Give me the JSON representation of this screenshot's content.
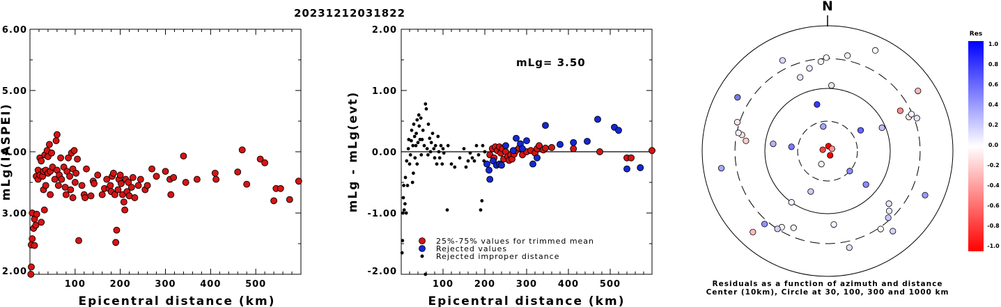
{
  "title": "20231212031822",
  "chart_data": [
    {
      "type": "scatter",
      "xlabel": "Epicentral distance (km)",
      "ylabel": "mLg(IASPEI)",
      "xlim": [
        0,
        600
      ],
      "ylim": [
        2.0,
        6.0
      ],
      "xticks": [
        "100",
        "200",
        "300",
        "400",
        "500"
      ],
      "yticks": [
        "2.00",
        "3.00",
        "4.00",
        "5.00",
        "6.00"
      ],
      "points": [
        [
          2,
          2.0
        ],
        [
          3,
          2.12
        ],
        [
          3,
          2.48
        ],
        [
          5,
          2.58
        ],
        [
          5,
          3.0
        ],
        [
          8,
          2.75
        ],
        [
          10,
          2.9
        ],
        [
          10,
          2.47
        ],
        [
          13,
          2.8
        ],
        [
          14,
          3.6
        ],
        [
          15,
          2.98
        ],
        [
          18,
          3.55
        ],
        [
          18,
          3.7
        ],
        [
          22,
          3.62
        ],
        [
          22,
          3.9
        ],
        [
          25,
          2.85
        ],
        [
          25,
          3.85
        ],
        [
          28,
          3.6
        ],
        [
          30,
          3.38
        ],
        [
          30,
          3.68
        ],
        [
          32,
          3.05
        ],
        [
          33,
          3.95
        ],
        [
          35,
          3.45
        ],
        [
          35,
          3.7
        ],
        [
          38,
          4.02
        ],
        [
          40,
          3.65
        ],
        [
          40,
          3.92
        ],
        [
          43,
          4.12
        ],
        [
          45,
          3.3
        ],
        [
          45,
          3.68
        ],
        [
          48,
          3.98
        ],
        [
          50,
          3.75
        ],
        [
          55,
          3.55
        ],
        [
          58,
          4.18
        ],
        [
          60,
          4.28
        ],
        [
          60,
          3.7
        ],
        [
          63,
          3.45
        ],
        [
          65,
          3.62
        ],
        [
          68,
          3.9
        ],
        [
          70,
          3.55
        ],
        [
          75,
          3.75
        ],
        [
          78,
          3.42
        ],
        [
          80,
          3.3
        ],
        [
          82,
          3.68
        ],
        [
          85,
          3.9
        ],
        [
          88,
          3.6
        ],
        [
          90,
          3.38
        ],
        [
          92,
          3.98
        ],
        [
          95,
          3.72
        ],
        [
          95,
          3.25
        ],
        [
          98,
          4.02
        ],
        [
          100,
          3.5
        ],
        [
          102,
          3.65
        ],
        [
          105,
          3.88
        ],
        [
          108,
          2.55
        ],
        [
          115,
          3.45
        ],
        [
          120,
          3.3
        ],
        [
          122,
          3.25
        ],
        [
          125,
          3.72
        ],
        [
          135,
          3.28
        ],
        [
          140,
          3.52
        ],
        [
          142,
          3.48
        ],
        [
          150,
          3.62
        ],
        [
          160,
          3.3
        ],
        [
          165,
          3.4
        ],
        [
          170,
          3.55
        ],
        [
          175,
          3.4
        ],
        [
          178,
          3.45
        ],
        [
          180,
          3.35
        ],
        [
          182,
          3.6
        ],
        [
          185,
          3.65
        ],
        [
          188,
          3.3
        ],
        [
          190,
          2.52
        ],
        [
          192,
          2.72
        ],
        [
          195,
          3.38
        ],
        [
          197,
          3.55
        ],
        [
          200,
          3.62
        ],
        [
          202,
          3.48
        ],
        [
          205,
          3.3
        ],
        [
          208,
          3.18
        ],
        [
          210,
          3.05
        ],
        [
          212,
          3.55
        ],
        [
          215,
          3.35
        ],
        [
          218,
          3.5
        ],
        [
          220,
          3.28
        ],
        [
          225,
          3.42
        ],
        [
          228,
          3.58
        ],
        [
          232,
          3.25
        ],
        [
          240,
          3.45
        ],
        [
          245,
          3.55
        ],
        [
          255,
          3.38
        ],
        [
          260,
          3.45
        ],
        [
          270,
          3.72
        ],
        [
          280,
          3.6
        ],
        [
          300,
          3.68
        ],
        [
          310,
          3.55
        ],
        [
          312,
          3.3
        ],
        [
          318,
          3.58
        ],
        [
          340,
          3.93
        ],
        [
          345,
          3.5
        ],
        [
          370,
          3.55
        ],
        [
          410,
          3.65
        ],
        [
          412,
          3.55
        ],
        [
          460,
          3.67
        ],
        [
          470,
          4.03
        ],
        [
          480,
          3.47
        ],
        [
          510,
          3.88
        ],
        [
          520,
          3.82
        ],
        [
          540,
          3.2
        ],
        [
          545,
          3.4
        ],
        [
          555,
          3.4
        ],
        [
          575,
          3.22
        ],
        [
          595,
          3.52
        ]
      ]
    },
    {
      "type": "scatter",
      "xlabel": "Epicentral distance (km)",
      "ylabel": "mLg - mLg(evt)",
      "annotation": "mLg= 3.50",
      "xlim": [
        0,
        600
      ],
      "ylim": [
        -2.0,
        2.0
      ],
      "xticks": [
        "100",
        "200",
        "300",
        "400",
        "500"
      ],
      "yticks": [
        "-2.00",
        "-1.00",
        "0.00",
        "1.00",
        "2.00"
      ],
      "reference_line_y": 0.0,
      "legend": [
        {
          "label": "25%-75% values for trimmed mean",
          "color": "#d41414"
        },
        {
          "label": "Rejected values",
          "color": "#1428d4"
        },
        {
          "label": "Rejected improper distance",
          "color": "#000000"
        }
      ],
      "series": [
        {
          "color": "#d41414",
          "points": [
            [
              212,
              -0.05
            ],
            [
              218,
              0.05
            ],
            [
              222,
              -0.1
            ],
            [
              225,
              0.08
            ],
            [
              230,
              0.02
            ],
            [
              235,
              0.08
            ],
            [
              238,
              -0.02
            ],
            [
              242,
              0.05
            ],
            [
              245,
              -0.12
            ],
            [
              250,
              0.0
            ],
            [
              255,
              -0.08
            ],
            [
              258,
              -0.14
            ],
            [
              262,
              -0.05
            ],
            [
              265,
              -0.12
            ],
            [
              270,
              -0.04
            ],
            [
              275,
              0.02
            ],
            [
              282,
              0.06
            ],
            [
              290,
              -0.05
            ],
            [
              300,
              0.0
            ],
            [
              310,
              0.02
            ],
            [
              320,
              -0.02
            ],
            [
              325,
              0.05
            ],
            [
              330,
              0.1
            ],
            [
              340,
              0.03
            ],
            [
              345,
              0.06
            ],
            [
              360,
              0.07
            ],
            [
              412,
              0.05
            ],
            [
              475,
              0.0
            ],
            [
              540,
              -0.1
            ],
            [
              550,
              -0.1
            ],
            [
              600,
              0.02
            ]
          ]
        },
        {
          "color": "#1428d4",
          "points": [
            [
              205,
              -0.2
            ],
            [
              210,
              -0.3
            ],
            [
              212,
              -0.45
            ],
            [
              220,
              -0.15
            ],
            [
              228,
              -0.22
            ],
            [
              235,
              -0.2
            ],
            [
              240,
              -0.22
            ],
            [
              250,
              0.1
            ],
            [
              268,
              0.02
            ],
            [
              275,
              0.22
            ],
            [
              285,
              0.13
            ],
            [
              290,
              0.05
            ],
            [
              300,
              0.18
            ],
            [
              315,
              -0.2
            ],
            [
              325,
              -0.1
            ],
            [
              345,
              0.43
            ],
            [
              380,
              0.12
            ],
            [
              412,
              0.15
            ],
            [
              445,
              0.17
            ],
            [
              470,
              0.53
            ],
            [
              510,
              0.4
            ],
            [
              520,
              0.35
            ],
            [
              540,
              -0.28
            ],
            [
              572,
              -0.26
            ]
          ]
        },
        {
          "color": "#000000",
          "points": [
            [
              2,
              -1.65
            ],
            [
              3,
              -1.45
            ],
            [
              4,
              -1.0
            ],
            [
              5,
              -0.75
            ],
            [
              6,
              -0.55
            ],
            [
              7,
              -0.95
            ],
            [
              9,
              -0.85
            ],
            [
              10,
              -0.42
            ],
            [
              12,
              -1.0
            ],
            [
              13,
              -0.15
            ],
            [
              15,
              -0.55
            ],
            [
              17,
              0.05
            ],
            [
              18,
              0.2
            ],
            [
              20,
              -0.2
            ],
            [
              22,
              -0.05
            ],
            [
              24,
              0.18
            ],
            [
              25,
              0.35
            ],
            [
              27,
              -0.5
            ],
            [
              28,
              0.1
            ],
            [
              29,
              -0.35
            ],
            [
              30,
              0.45
            ],
            [
              32,
              0.25
            ],
            [
              33,
              -0.1
            ],
            [
              35,
              0.1
            ],
            [
              36,
              0.3
            ],
            [
              38,
              0.52
            ],
            [
              38,
              -0.2
            ],
            [
              40,
              0.15
            ],
            [
              42,
              0.6
            ],
            [
              43,
              0.42
            ],
            [
              45,
              0.2
            ],
            [
              47,
              0.55
            ],
            [
              48,
              -0.05
            ],
            [
              50,
              0.2
            ],
            [
              52,
              0.35
            ],
            [
              55,
              0.1
            ],
            [
              58,
              0.78
            ],
            [
              58,
              -2.0
            ],
            [
              60,
              0.7
            ],
            [
              62,
              0.05
            ],
            [
              64,
              -0.05
            ],
            [
              65,
              0.45
            ],
            [
              68,
              0.22
            ],
            [
              70,
              0.0
            ],
            [
              72,
              0.15
            ],
            [
              75,
              0.3
            ],
            [
              78,
              0.05
            ],
            [
              80,
              -0.1
            ],
            [
              82,
              0.1
            ],
            [
              85,
              -0.2
            ],
            [
              88,
              0.25
            ],
            [
              90,
              0.0
            ],
            [
              92,
              -0.1
            ],
            [
              95,
              0.1
            ],
            [
              98,
              -0.2
            ],
            [
              100,
              0.05
            ],
            [
              102,
              -0.02
            ],
            [
              110,
              -0.95
            ],
            [
              112,
              0.1
            ],
            [
              120,
              -0.2
            ],
            [
              128,
              -0.25
            ],
            [
              140,
              -0.1
            ],
            [
              150,
              0.05
            ],
            [
              155,
              -0.25
            ],
            [
              160,
              -0.15
            ],
            [
              165,
              -0.02
            ],
            [
              170,
              -0.1
            ],
            [
              175,
              -0.15
            ],
            [
              180,
              0.1
            ],
            [
              185,
              -0.05
            ],
            [
              190,
              -0.95
            ],
            [
              193,
              -0.8
            ],
            [
              195,
              0.1
            ],
            [
              198,
              -0.15
            ],
            [
              200,
              0.0
            ]
          ]
        }
      ]
    },
    {
      "type": "scatter",
      "title": "Residuals as a function of azimuth and distance",
      "subtitle": "Center (10km), Circle at 30, 100, 300 and 1000 km",
      "north_label": "N",
      "colorbar": {
        "title": "Res",
        "ticks": [
          "1.0",
          "0.8",
          "0.6",
          "0.4",
          "0.2",
          "0.0",
          "-0.2",
          "-0.4",
          "-0.6",
          "-0.8",
          "-1.0"
        ]
      },
      "points": [
        [
          2,
          -1.65,
          0.0
        ],
        [
          3,
          -1.45,
          0.0
        ],
        [
          5,
          -0.75,
          0.0
        ],
        [
          10,
          -0.42,
          0.0
        ],
        [
          17,
          0.05,
          0.0
        ],
        [
          25,
          0.35,
          0.0
        ],
        [
          30,
          0.45,
          0.0
        ],
        [
          38,
          0.52,
          0.0
        ],
        [
          42,
          0.6,
          0.0
        ],
        [
          50,
          0.2,
          0.0
        ],
        [
          58,
          0.78,
          0.0
        ],
        [
          65,
          0.45,
          0.0
        ],
        [
          75,
          0.3,
          0.0
        ],
        [
          88,
          0.25,
          0.0
        ],
        [
          100,
          0.05,
          0.0
        ],
        [
          112,
          0.1,
          0.0
        ],
        [
          150,
          0.05,
          0.0
        ],
        [
          180,
          0.1,
          0.0
        ],
        [
          195,
          0.1,
          0.0
        ],
        [
          205,
          -0.2,
          0.0
        ],
        [
          212,
          -0.45,
          0.0
        ],
        [
          218,
          0.05,
          0.0
        ],
        [
          225,
          0.08,
          0.0
        ],
        [
          235,
          0.08,
          0.0
        ],
        [
          245,
          -0.12,
          0.0
        ],
        [
          255,
          -0.08,
          0.0
        ],
        [
          262,
          -0.05,
          0.0
        ],
        [
          270,
          -0.04,
          0.0
        ],
        [
          275,
          0.22,
          0.0
        ],
        [
          282,
          0.06,
          0.0
        ],
        [
          290,
          0.05,
          0.0
        ],
        [
          300,
          0.18,
          0.0
        ],
        [
          310,
          0.02,
          0.0
        ],
        [
          320,
          -0.02,
          0.0
        ],
        [
          325,
          -0.1,
          0.0
        ],
        [
          330,
          0.1,
          0.0
        ],
        [
          345,
          0.43,
          0.0
        ],
        [
          360,
          0.07,
          0.0
        ],
        [
          380,
          0.12,
          0.0
        ],
        [
          412,
          0.15,
          0.0
        ],
        [
          445,
          0.17,
          0.0
        ],
        [
          470,
          0.53,
          0.0
        ],
        [
          510,
          0.4,
          0.0
        ],
        [
          520,
          0.35,
          0.0
        ],
        [
          540,
          -0.28,
          0.0
        ],
        [
          572,
          -0.26,
          0.0
        ],
        [
          600,
          0.02,
          0.0
        ]
      ]
    }
  ]
}
